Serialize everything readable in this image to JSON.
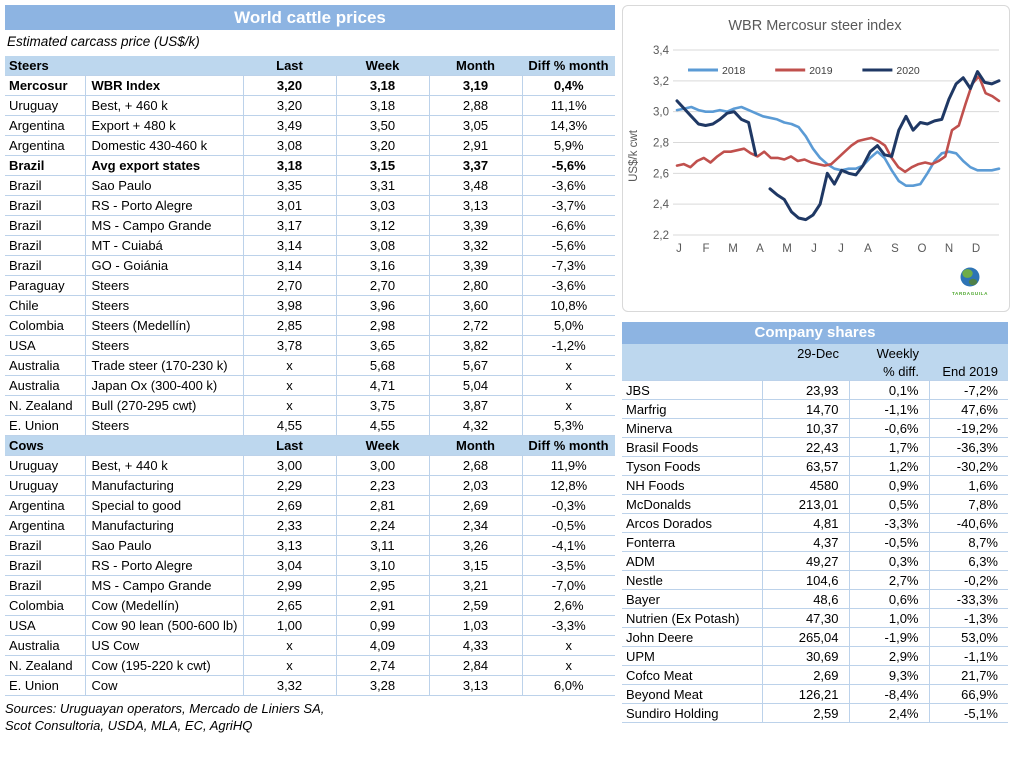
{
  "colors": {
    "header_blue": "#8db4e2",
    "band_blue": "#bdd7ee",
    "row_border": "#bcd2ea",
    "grid_gray": "#d9d9d9",
    "chart_text": "#595959",
    "series_2018": "#5b9bd5",
    "series_2019": "#c0504d",
    "series_2020": "#1f3864",
    "logo_green": "#4ea72e"
  },
  "left_panel": {
    "title": "World cattle prices",
    "subtitle": "Estimated carcass price (US$/k)",
    "columns": [
      "Last",
      "Week",
      "Month",
      "Diff % month"
    ],
    "steers_label": "Steers",
    "cows_label": "Cows",
    "steers_rows": [
      {
        "country": "Mercosur",
        "desc": "WBR Index",
        "last": "3,20",
        "week": "3,18",
        "month": "3,19",
        "diff": "0,4%",
        "bold": true
      },
      {
        "country": "Uruguay",
        "desc": "Best, + 460 k",
        "last": "3,20",
        "week": "3,18",
        "month": "2,88",
        "diff": "11,1%",
        "bold": false
      },
      {
        "country": "Argentina",
        "desc": "Export + 480 k",
        "last": "3,49",
        "week": "3,50",
        "month": "3,05",
        "diff": "14,3%",
        "bold": false
      },
      {
        "country": "Argentina",
        "desc": "Domestic 430-460 k",
        "last": "3,08",
        "week": "3,20",
        "month": "2,91",
        "diff": "5,9%",
        "bold": false
      },
      {
        "country": "Brazil",
        "desc": "Avg export states",
        "last": "3,18",
        "week": "3,15",
        "month": "3,37",
        "diff": "-5,6%",
        "bold": true
      },
      {
        "country": "Brazil",
        "desc": "Sao Paulo",
        "last": "3,35",
        "week": "3,31",
        "month": "3,48",
        "diff": "-3,6%",
        "bold": false
      },
      {
        "country": "Brazil",
        "desc": "RS - Porto Alegre",
        "last": "3,01",
        "week": "3,03",
        "month": "3,13",
        "diff": "-3,7%",
        "bold": false
      },
      {
        "country": "Brazil",
        "desc": "MS - Campo Grande",
        "last": "3,17",
        "week": "3,12",
        "month": "3,39",
        "diff": "-6,6%",
        "bold": false
      },
      {
        "country": "Brazil",
        "desc": "MT - Cuiabá",
        "last": "3,14",
        "week": "3,08",
        "month": "3,32",
        "diff": "-5,6%",
        "bold": false
      },
      {
        "country": "Brazil",
        "desc": "GO - Goiánia",
        "last": "3,14",
        "week": "3,16",
        "month": "3,39",
        "diff": "-7,3%",
        "bold": false
      },
      {
        "country": "Paraguay",
        "desc": "Steers",
        "last": "2,70",
        "week": "2,70",
        "month": "2,80",
        "diff": "-3,6%",
        "bold": false
      },
      {
        "country": "Chile",
        "desc": "Steers",
        "last": "3,98",
        "week": "3,96",
        "month": "3,60",
        "diff": "10,8%",
        "bold": false
      },
      {
        "country": "Colombia",
        "desc": "Steers (Medellín)",
        "last": "2,85",
        "week": "2,98",
        "month": "2,72",
        "diff": "5,0%",
        "bold": false
      },
      {
        "country": "USA",
        "desc": "Steers",
        "last": "3,78",
        "week": "3,65",
        "month": "3,82",
        "diff": "-1,2%",
        "bold": false
      },
      {
        "country": "Australia",
        "desc": "Trade steer (170-230 k)",
        "last": "x",
        "week": "5,68",
        "month": "5,67",
        "diff": "x",
        "bold": false
      },
      {
        "country": "Australia",
        "desc": "Japan Ox (300-400 k)",
        "last": "x",
        "week": "4,71",
        "month": "5,04",
        "diff": "x",
        "bold": false
      },
      {
        "country": "N. Zealand",
        "desc": "Bull (270-295 cwt)",
        "last": "x",
        "week": "3,75",
        "month": "3,87",
        "diff": "x",
        "bold": false
      },
      {
        "country": "E. Union",
        "desc": "Steers",
        "last": "4,55",
        "week": "4,55",
        "month": "4,32",
        "diff": "5,3%",
        "bold": false
      }
    ],
    "cows_rows": [
      {
        "country": "Uruguay",
        "desc": "Best, + 440 k",
        "last": "3,00",
        "week": "3,00",
        "month": "2,68",
        "diff": "11,9%",
        "bold": false
      },
      {
        "country": "Uruguay",
        "desc": "Manufacturing",
        "last": "2,29",
        "week": "2,23",
        "month": "2,03",
        "diff": "12,8%",
        "bold": false
      },
      {
        "country": "Argentina",
        "desc": "Special to good",
        "last": "2,69",
        "week": "2,81",
        "month": "2,69",
        "diff": "-0,3%",
        "bold": false
      },
      {
        "country": "Argentina",
        "desc": "Manufacturing",
        "last": "2,33",
        "week": "2,24",
        "month": "2,34",
        "diff": "-0,5%",
        "bold": false
      },
      {
        "country": "Brazil",
        "desc": "Sao Paulo",
        "last": "3,13",
        "week": "3,11",
        "month": "3,26",
        "diff": "-4,1%",
        "bold": false
      },
      {
        "country": "Brazil",
        "desc": "RS - Porto Alegre",
        "last": "3,04",
        "week": "3,10",
        "month": "3,15",
        "diff": "-3,5%",
        "bold": false
      },
      {
        "country": "Brazil",
        "desc": "MS - Campo Grande",
        "last": "2,99",
        "week": "2,95",
        "month": "3,21",
        "diff": "-7,0%",
        "bold": false
      },
      {
        "country": "Colombia",
        "desc": "Cow (Medellín)",
        "last": "2,65",
        "week": "2,91",
        "month": "2,59",
        "diff": "2,6%",
        "bold": false
      },
      {
        "country": "USA",
        "desc": "Cow 90 lean (500-600 lb)",
        "last": "1,00",
        "week": "0,99",
        "month": "1,03",
        "diff": "-3,3%",
        "bold": false
      },
      {
        "country": "Australia",
        "desc": "US Cow",
        "last": "x",
        "week": "4,09",
        "month": "4,33",
        "diff": "x",
        "bold": false
      },
      {
        "country": "N. Zealand",
        "desc": "Cow (195-220 k cwt)",
        "last": "x",
        "week": "2,74",
        "month": "2,84",
        "diff": "x",
        "bold": false
      },
      {
        "country": "E. Union",
        "desc": "Cow",
        "last": "3,32",
        "week": "3,28",
        "month": "3,13",
        "diff": "6,0%",
        "bold": false
      }
    ],
    "sources_line1": "Sources: Uruguayan operators, Mercado de Liniers SA,",
    "sources_line2": "Scot Consultoria, USDA, MLA, EC, AgriHQ"
  },
  "chart_data": {
    "type": "line",
    "title": "WBR Mercosur steer index",
    "ylabel": "US$/k cwt",
    "ylim": [
      2.2,
      3.4
    ],
    "ytick_values": [
      3.4,
      3.2,
      3.0,
      2.8,
      2.6,
      2.4,
      2.2
    ],
    "ytick_labels": [
      "3,4",
      "3,2",
      "3,0",
      "2,8",
      "2,6",
      "2,4",
      "2,2"
    ],
    "x_labels": [
      "J",
      "F",
      "M",
      "A",
      "M",
      "J",
      "J",
      "A",
      "S",
      "O",
      "N",
      "D"
    ],
    "grid": true,
    "legend_position": "top-inside",
    "logo_text": "TARDAGUILA",
    "series": [
      {
        "name": "2018",
        "color": "#5b9bd5",
        "values": [
          3.01,
          3.02,
          3.03,
          3.01,
          3.0,
          3.0,
          3.01,
          3.0,
          3.02,
          3.03,
          3.01,
          2.99,
          2.97,
          2.96,
          2.95,
          2.93,
          2.92,
          2.9,
          2.84,
          2.76,
          2.7,
          2.66,
          2.63,
          2.62,
          2.63,
          2.63,
          2.65,
          2.7,
          2.74,
          2.7,
          2.62,
          2.55,
          2.52,
          2.52,
          2.53,
          2.6,
          2.68,
          2.73,
          2.74,
          2.73,
          2.68,
          2.64,
          2.62,
          2.62,
          2.62,
          2.63
        ]
      },
      {
        "name": "2019",
        "color": "#c0504d",
        "values": [
          2.65,
          2.66,
          2.64,
          2.68,
          2.7,
          2.67,
          2.71,
          2.74,
          2.74,
          2.75,
          2.76,
          2.73,
          2.71,
          2.74,
          2.7,
          2.7,
          2.69,
          2.71,
          2.68,
          2.69,
          2.67,
          2.66,
          2.65,
          2.66,
          2.7,
          2.74,
          2.78,
          2.81,
          2.82,
          2.83,
          2.81,
          2.78,
          2.7,
          2.64,
          2.61,
          2.64,
          2.66,
          2.67,
          2.66,
          2.68,
          2.71,
          2.88,
          2.91,
          3.05,
          3.18,
          3.23,
          3.12,
          3.1,
          3.07
        ]
      },
      {
        "name": "2020",
        "color": "#1f3864",
        "values": [
          3.07,
          3.02,
          2.97,
          2.92,
          2.91,
          2.92,
          2.95,
          2.99,
          3.0,
          2.95,
          2.93,
          2.72,
          null,
          2.5,
          2.46,
          2.43,
          2.35,
          2.31,
          2.3,
          2.33,
          2.4,
          2.6,
          2.53,
          2.62,
          2.6,
          2.59,
          2.65,
          2.74,
          2.78,
          2.72,
          2.71,
          2.88,
          2.97,
          2.88,
          2.93,
          2.92,
          2.94,
          2.95,
          3.08,
          3.18,
          3.22,
          3.15,
          3.26,
          3.19,
          3.18,
          3.2
        ]
      }
    ]
  },
  "company_shares": {
    "title": "Company shares",
    "header": {
      "date": "29-Dec",
      "weekly_line1": "Weekly",
      "weekly_line2": "% diff.",
      "end": "End 2019"
    },
    "rows": [
      {
        "name": "JBS",
        "price": "23,93",
        "weekly": "0,1%",
        "end": "-7,2%"
      },
      {
        "name": "Marfrig",
        "price": "14,70",
        "weekly": "-1,1%",
        "end": "47,6%"
      },
      {
        "name": "Minerva",
        "price": "10,37",
        "weekly": "-0,6%",
        "end": "-19,2%"
      },
      {
        "name": "Brasil Foods",
        "price": "22,43",
        "weekly": "1,7%",
        "end": "-36,3%"
      },
      {
        "name": "Tyson Foods",
        "price": "63,57",
        "weekly": "1,2%",
        "end": "-30,2%"
      },
      {
        "name": "NH Foods",
        "price": "4580",
        "weekly": "0,9%",
        "end": "1,6%"
      },
      {
        "name": "McDonalds",
        "price": "213,01",
        "weekly": "0,5%",
        "end": "7,8%"
      },
      {
        "name": "Arcos Dorados",
        "price": "4,81",
        "weekly": "-3,3%",
        "end": "-40,6%"
      },
      {
        "name": "Fonterra",
        "price": "4,37",
        "weekly": "-0,5%",
        "end": "8,7%"
      },
      {
        "name": "ADM",
        "price": "49,27",
        "weekly": "0,3%",
        "end": "6,3%"
      },
      {
        "name": "Nestle",
        "price": "104,6",
        "weekly": "2,7%",
        "end": "-0,2%"
      },
      {
        "name": "Bayer",
        "price": "48,6",
        "weekly": "0,6%",
        "end": "-33,3%"
      },
      {
        "name": "Nutrien (Ex Potash)",
        "price": "47,30",
        "weekly": "1,0%",
        "end": "-1,3%"
      },
      {
        "name": "John Deere",
        "price": "265,04",
        "weekly": "-1,9%",
        "end": "53,0%"
      },
      {
        "name": "UPM",
        "price": "30,69",
        "weekly": "2,9%",
        "end": "-1,1%"
      },
      {
        "name": "Cofco Meat",
        "price": "2,69",
        "weekly": "9,3%",
        "end": "21,7%"
      },
      {
        "name": "Beyond Meat",
        "price": "126,21",
        "weekly": "-8,4%",
        "end": "66,9%"
      },
      {
        "name": "Sundiro Holding",
        "price": "2,59",
        "weekly": "2,4%",
        "end": "-5,1%"
      }
    ]
  }
}
